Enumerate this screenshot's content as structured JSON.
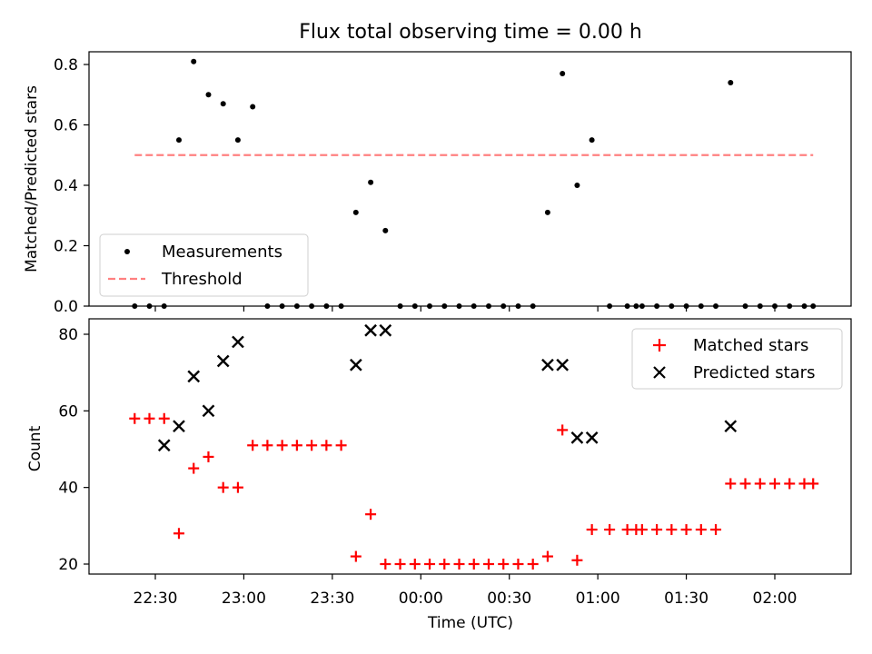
{
  "chart_data": [
    {
      "type": "scatter",
      "title": "Flux total observing time = 0.00 h",
      "xlabel": "",
      "ylabel": "Matched/Predicted stars",
      "ylim": [
        0,
        0.85
      ],
      "yticks": [
        "0.0",
        "0.2",
        "0.4",
        "0.6",
        "0.8"
      ],
      "grid": false,
      "legend_position": "lower-left",
      "legend": [
        "Measurements",
        "Threshold"
      ],
      "threshold": {
        "name": "Threshold",
        "value": 0.5,
        "x_start": "22:23",
        "x_end": "02:13",
        "color": "#ff8080",
        "style": "dashed"
      },
      "series": [
        {
          "name": "Measurements",
          "marker": "dot",
          "color": "#000000",
          "x": [
            "22:23",
            "22:28",
            "22:33",
            "22:38",
            "22:43",
            "22:48",
            "22:53",
            "22:58",
            "23:03",
            "23:08",
            "23:13",
            "23:18",
            "23:23",
            "23:28",
            "23:33",
            "23:38",
            "23:43",
            "23:48",
            "23:53",
            "23:58",
            "00:03",
            "00:08",
            "00:13",
            "00:18",
            "00:23",
            "00:28",
            "00:33",
            "00:38",
            "00:43",
            "00:48",
            "00:53",
            "00:58",
            "01:04",
            "01:10",
            "01:15",
            "01:20",
            "01:25",
            "01:30",
            "01:35",
            "01:40",
            "01:45",
            "01:50",
            "01:55",
            "02:00",
            "02:05",
            "02:10",
            "02:13",
            "01:13"
          ],
          "y": [
            0,
            0,
            0,
            0.55,
            0.81,
            0.7,
            0.67,
            0.55,
            0.66,
            0,
            0,
            0,
            0,
            0,
            0,
            0.31,
            0.41,
            0.25,
            0,
            0,
            0,
            0,
            0,
            0,
            0,
            0,
            0,
            0,
            0.31,
            0.77,
            0.4,
            0.55,
            0,
            0,
            0,
            0,
            0,
            0,
            0,
            0,
            0.74,
            0,
            0,
            0,
            0,
            0,
            0,
            0
          ]
        }
      ]
    },
    {
      "type": "scatter",
      "title": "",
      "xlabel": "Time (UTC)",
      "ylabel": "Count",
      "ylim": [
        17,
        84
      ],
      "yticks": [
        "20",
        "40",
        "60",
        "80"
      ],
      "xticks": [
        "22:30",
        "23:00",
        "23:30",
        "00:00",
        "00:30",
        "01:00",
        "01:30",
        "02:00"
      ],
      "grid": false,
      "legend_position": "top-right",
      "series": [
        {
          "name": "Matched stars",
          "marker": "plus",
          "color": "#ff0000",
          "x": [
            "22:23",
            "22:28",
            "22:33",
            "22:38",
            "22:43",
            "22:48",
            "22:53",
            "22:58",
            "23:03",
            "23:08",
            "23:13",
            "23:18",
            "23:23",
            "23:28",
            "23:33",
            "23:38",
            "23:43",
            "23:48",
            "23:53",
            "23:58",
            "00:03",
            "00:08",
            "00:13",
            "00:18",
            "00:23",
            "00:28",
            "00:33",
            "00:38",
            "00:43",
            "00:48",
            "00:53",
            "00:58",
            "01:04",
            "01:10",
            "01:13",
            "01:15",
            "01:20",
            "01:25",
            "01:30",
            "01:35",
            "01:40",
            "01:45",
            "01:50",
            "01:55",
            "02:00",
            "02:05",
            "02:10",
            "02:13"
          ],
          "y": [
            58,
            58,
            58,
            28,
            45,
            48,
            40,
            40,
            51,
            51,
            51,
            51,
            51,
            51,
            51,
            22,
            33,
            20,
            20,
            20,
            20,
            20,
            20,
            20,
            20,
            20,
            20,
            20,
            22,
            55,
            21,
            29,
            29,
            29,
            29,
            29,
            29,
            29,
            29,
            29,
            29,
            41,
            41,
            41,
            41,
            41,
            41,
            41
          ]
        },
        {
          "name": "Predicted stars",
          "marker": "x",
          "color": "#000000",
          "x": [
            "22:33",
            "22:38",
            "22:43",
            "22:48",
            "22:53",
            "22:58",
            "23:38",
            "23:43",
            "23:48",
            "00:43",
            "00:48",
            "00:53",
            "00:58",
            "01:45"
          ],
          "y": [
            51,
            56,
            69,
            60,
            73,
            78,
            72,
            81,
            81,
            72,
            72,
            53,
            53,
            56
          ]
        }
      ]
    }
  ]
}
